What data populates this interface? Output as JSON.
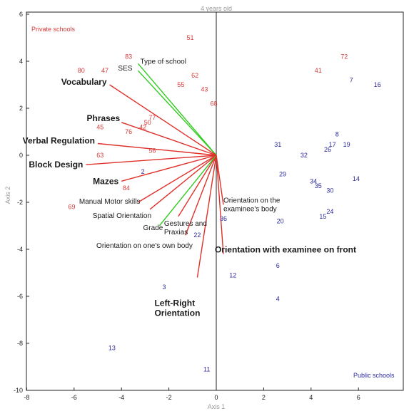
{
  "chart_data": {
    "type": "scatter",
    "title": "4 years old",
    "xlabel": "Axis 1",
    "ylabel": "Axis 2",
    "xlim": [
      -8.2,
      8.2
    ],
    "ylim": [
      -10,
      6.1
    ],
    "xticks": [
      -8,
      -6,
      -4,
      -2,
      0,
      2,
      4,
      6
    ],
    "yticks": [
      -10,
      -8,
      -6,
      -4,
      -2,
      0,
      2,
      4,
      6
    ],
    "grid": false,
    "group_labels": {
      "private": "Private schools",
      "public": "Public schools"
    },
    "colors": {
      "private": "#d93a3a",
      "public": "#2b2b9c",
      "red_vector": "#e0302a",
      "green_vector": "#33cc22",
      "axis": "#222222"
    },
    "private_points": [
      {
        "label": "51",
        "x": -1.1,
        "y": 5.0
      },
      {
        "label": "83",
        "x": -3.7,
        "y": 4.2
      },
      {
        "label": "80",
        "x": -5.7,
        "y": 3.6
      },
      {
        "label": "47",
        "x": -4.7,
        "y": 3.6
      },
      {
        "label": "62",
        "x": -0.9,
        "y": 3.4
      },
      {
        "label": "55",
        "x": -1.5,
        "y": 3.0
      },
      {
        "label": "43",
        "x": -0.5,
        "y": 2.8
      },
      {
        "label": "68",
        "x": -0.1,
        "y": 2.2
      },
      {
        "label": "77",
        "x": -2.7,
        "y": 1.6
      },
      {
        "label": "50",
        "x": -2.9,
        "y": 1.4
      },
      {
        "label": "45",
        "x": -4.9,
        "y": 1.2
      },
      {
        "label": "42",
        "x": -3.1,
        "y": 1.2
      },
      {
        "label": "76",
        "x": -3.7,
        "y": 1.0
      },
      {
        "label": "56",
        "x": -2.7,
        "y": 0.2
      },
      {
        "label": "63",
        "x": -4.9,
        "y": 0.0
      },
      {
        "label": "84",
        "x": -3.8,
        "y": -1.4
      },
      {
        "label": "69",
        "x": -6.1,
        "y": -2.2
      },
      {
        "label": "72",
        "x": 5.4,
        "y": 4.2
      },
      {
        "label": "41",
        "x": 4.3,
        "y": 3.6
      }
    ],
    "public_points": [
      {
        "label": "7",
        "x": 5.7,
        "y": 3.2
      },
      {
        "label": "16",
        "x": 6.8,
        "y": 3.0
      },
      {
        "label": "8",
        "x": 5.1,
        "y": 0.9
      },
      {
        "label": "17",
        "x": 4.9,
        "y": 0.45
      },
      {
        "label": "26",
        "x": 4.7,
        "y": 0.25
      },
      {
        "label": "19",
        "x": 5.5,
        "y": 0.45
      },
      {
        "label": "31",
        "x": 2.6,
        "y": 0.45
      },
      {
        "label": "32",
        "x": 3.7,
        "y": 0.0
      },
      {
        "label": "29",
        "x": 2.8,
        "y": -0.8
      },
      {
        "label": "14",
        "x": 5.9,
        "y": -1.0
      },
      {
        "label": "34",
        "x": 4.1,
        "y": -1.1
      },
      {
        "label": "35",
        "x": 4.3,
        "y": -1.3
      },
      {
        "label": "30",
        "x": 4.8,
        "y": -1.5
      },
      {
        "label": "2",
        "x": -3.1,
        "y": -0.7
      },
      {
        "label": "24",
        "x": 4.8,
        "y": -2.4
      },
      {
        "label": "15",
        "x": 4.5,
        "y": -2.6
      },
      {
        "label": "20",
        "x": 2.7,
        "y": -2.8
      },
      {
        "label": "36",
        "x": 0.3,
        "y": -2.7
      },
      {
        "label": "22",
        "x": -0.8,
        "y": -3.4
      },
      {
        "label": "6",
        "x": 2.6,
        "y": -4.7
      },
      {
        "label": "12",
        "x": 0.7,
        "y": -5.1
      },
      {
        "label": "3",
        "x": -2.2,
        "y": -5.6
      },
      {
        "label": "4",
        "x": 2.6,
        "y": -6.1
      },
      {
        "label": "13",
        "x": -4.4,
        "y": -8.2
      },
      {
        "label": "11",
        "x": -0.4,
        "y": -9.1
      }
    ],
    "vectors": [
      {
        "label": "Type of school",
        "x": -3.3,
        "y": 3.9,
        "color": "green",
        "bold": false
      },
      {
        "label": "SES",
        "x": -3.3,
        "y": 3.6,
        "color": "green",
        "bold": false
      },
      {
        "label": "Vocabulary",
        "x": -4.5,
        "y": 3.0,
        "color": "red",
        "bold": true
      },
      {
        "label": "Phrases",
        "x": -4.0,
        "y": 1.4,
        "color": "red",
        "bold": true
      },
      {
        "label": "Verbal Regulation",
        "x": -5.0,
        "y": 0.5,
        "color": "red",
        "bold": true
      },
      {
        "label": "Block Design",
        "x": -5.5,
        "y": -0.4,
        "color": "red",
        "bold": true
      },
      {
        "label": "Mazes",
        "x": -4.0,
        "y": -1.1,
        "color": "red",
        "bold": true
      },
      {
        "label": "Manual Motor skills",
        "x": -3.3,
        "y": -2.0,
        "color": "red",
        "bold": false
      },
      {
        "label": "Spatial Orientation",
        "x": -2.8,
        "y": -2.3,
        "color": "red",
        "bold": false
      },
      {
        "label": "Gestures and Praxias",
        "x": -1.6,
        "y": -2.6,
        "color": "red",
        "bold": false
      },
      {
        "label": "Grade",
        "x": -2.4,
        "y": -3.0,
        "color": "green",
        "bold": false
      },
      {
        "label": "Orientation on one's own body",
        "x": -1.3,
        "y": -3.4,
        "color": "red",
        "bold": false
      },
      {
        "label": "Orientation on the examinee's body",
        "x": 0.3,
        "y": -2.1,
        "color": "red",
        "bold": false
      },
      {
        "label": "Orientation with examinee on front",
        "x": 0.3,
        "y": -4.2,
        "color": "red",
        "bold": true
      },
      {
        "label": "Left-Right Orientation",
        "x": -0.8,
        "y": -5.2,
        "color": "red",
        "bold": true
      }
    ]
  }
}
